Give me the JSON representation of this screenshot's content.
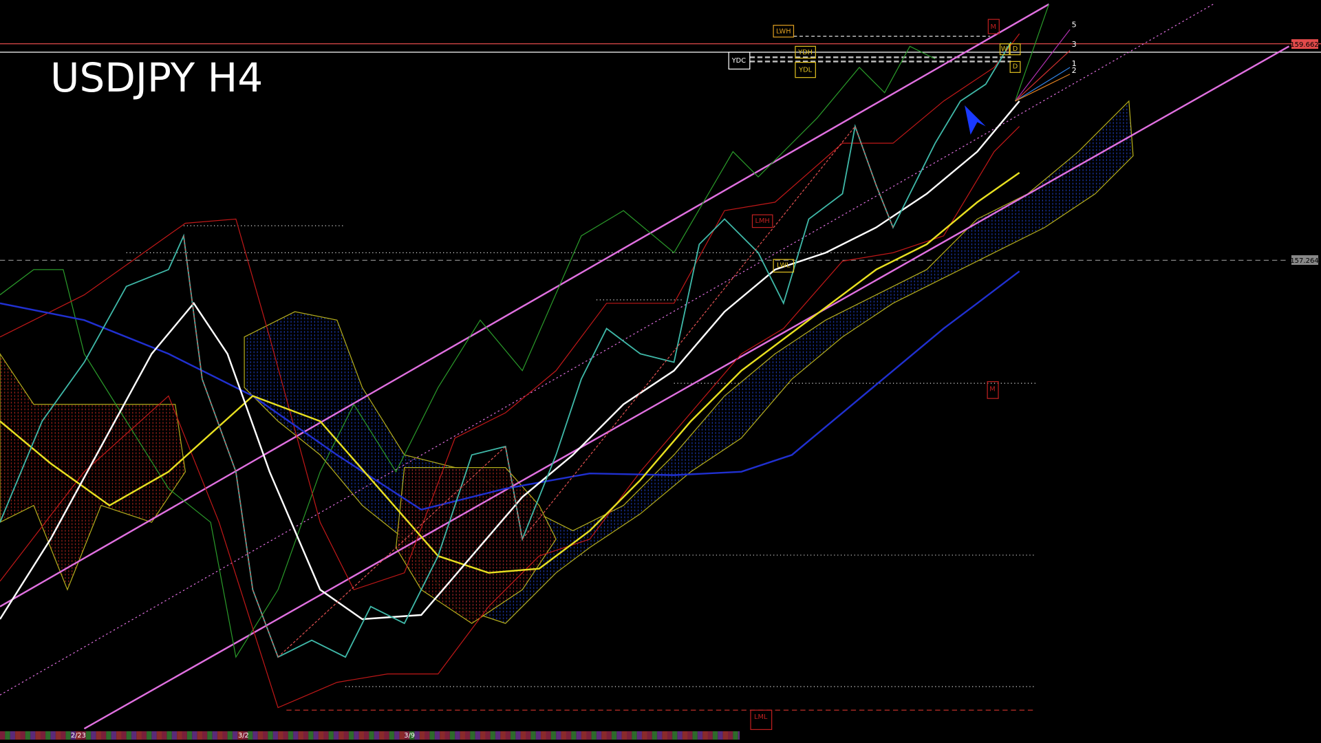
{
  "header": {
    "title": "USDJPY H4"
  },
  "price_labels": {
    "upper": "159.662",
    "middle": "157.264"
  },
  "date_labels": [
    "2/23",
    "3/2",
    "3/9"
  ],
  "level_tags": {
    "lwh": "LWH",
    "ydh": "YDH",
    "ydc": "YDC",
    "ydl": "YDL",
    "month_top": "M",
    "week": "W",
    "day_top": "D",
    "day_bottom": "D",
    "lmh": "LMH",
    "lwl": "LWL",
    "month_mid": "M",
    "lml": "LML"
  },
  "fib_labels": [
    "5",
    "3",
    "1",
    "2"
  ]
}
